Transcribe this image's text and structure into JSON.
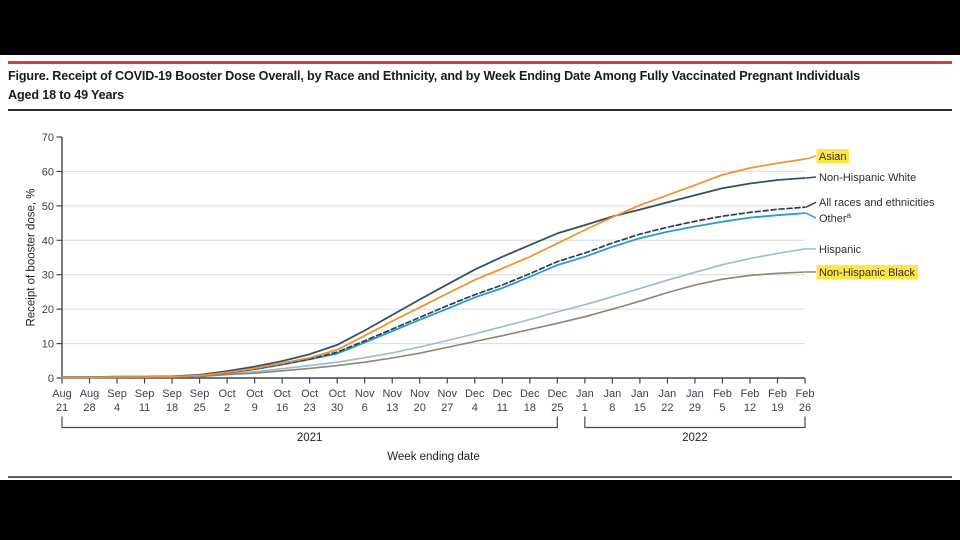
{
  "page": {
    "background": "#000000",
    "card_background": "#ffffff",
    "top_rule_color": "#DE3B40",
    "highlight_color": "#FFE546"
  },
  "figure_title": {
    "line1": "Figure. Receipt of COVID-19 Booster Dose Overall, by Race and Ethnicity, and by Week Ending Date Among Fully Vaccinated Pregnant Individuals",
    "line2": "Aged 18 to 49 Years"
  },
  "chart_data": {
    "type": "line",
    "title": "",
    "xlabel": "Week ending date",
    "ylabel": "Receipt of booster dose, %",
    "ylim": [
      0,
      70
    ],
    "yticks": [
      0,
      10,
      20,
      30,
      40,
      50,
      60,
      70
    ],
    "grid": "horizontal gridlines at 10-60",
    "legend_position": "right of line ends",
    "x_tick_months": [
      "Aug",
      "Aug",
      "Sep",
      "Sep",
      "Sep",
      "Sep",
      "Oct",
      "Oct",
      "Oct",
      "Oct",
      "Oct",
      "Nov",
      "Nov",
      "Nov",
      "Nov",
      "Dec",
      "Dec",
      "Dec",
      "Dec",
      "Jan",
      "Jan",
      "Jan",
      "Jan",
      "Jan",
      "Feb",
      "Feb",
      "Feb",
      "Feb"
    ],
    "x_tick_days": [
      "21",
      "28",
      "4",
      "11",
      "18",
      "25",
      "2",
      "9",
      "16",
      "23",
      "30",
      "6",
      "13",
      "20",
      "27",
      "4",
      "11",
      "18",
      "25",
      "1",
      "8",
      "15",
      "22",
      "29",
      "5",
      "12",
      "19",
      "26"
    ],
    "year_spans": [
      {
        "label": "2021",
        "from_index": 0,
        "to_index": 18
      },
      {
        "label": "2022",
        "from_index": 19,
        "to_index": 27
      }
    ],
    "series": [
      {
        "key": "hispanic",
        "label": "Hispanic",
        "color": "#A0BACA",
        "dash": null,
        "width": 1.6,
        "highlight": false,
        "label_dy": 0,
        "values": [
          0.2,
          0.2,
          0.2,
          0.3,
          0.3,
          0.5,
          1.2,
          1.8,
          2.7,
          3.6,
          4.6,
          5.9,
          7.3,
          9.0,
          10.9,
          12.8,
          14.9,
          17.0,
          19.2,
          21.3,
          23.6,
          26.0,
          28.4,
          30.7,
          32.9,
          34.7,
          36.2,
          37.5
        ]
      },
      {
        "key": "non-hispanic-black",
        "label": "Non-Hispanic Black",
        "color": "#8D8672",
        "dash": null,
        "width": 1.6,
        "highlight": true,
        "label_dy": 0,
        "values": [
          0.1,
          0.1,
          0.2,
          0.2,
          0.3,
          0.4,
          1.0,
          1.4,
          2.1,
          2.8,
          3.6,
          4.6,
          5.8,
          7.2,
          8.9,
          10.6,
          12.3,
          14.1,
          15.9,
          17.8,
          20.0,
          22.3,
          24.8,
          27.0,
          28.7,
          29.8,
          30.4,
          30.8
        ]
      },
      {
        "key": "other",
        "label": "Other",
        "sup": "a",
        "color": "#2A9AD6",
        "dash": null,
        "width": 1.8,
        "highlight": false,
        "label_dy": 5,
        "values": [
          0.2,
          0.2,
          0.3,
          0.3,
          0.4,
          0.7,
          1.5,
          2.5,
          3.9,
          5.4,
          7.1,
          10.3,
          13.6,
          16.9,
          20.1,
          23.4,
          26.1,
          29.4,
          32.8,
          35.2,
          38.1,
          40.6,
          42.5,
          44.0,
          45.4,
          46.6,
          47.3,
          47.9
        ]
      },
      {
        "key": "all-races-and-ethnicities",
        "label": "All races and ethnicities",
        "color": "#2B3E4E",
        "dash": "5,3",
        "width": 1.7,
        "highlight": false,
        "label_dy": -5,
        "values": [
          0.2,
          0.2,
          0.3,
          0.3,
          0.4,
          0.7,
          1.5,
          2.6,
          4.0,
          5.5,
          7.5,
          10.8,
          14.2,
          17.6,
          21.0,
          24.2,
          27.0,
          30.3,
          33.8,
          36.3,
          39.2,
          41.8,
          43.8,
          45.5,
          47.0,
          48.1,
          49.0,
          49.6
        ]
      },
      {
        "key": "non-hispanic-white",
        "label": "Non-Hispanic White",
        "color": "#374F63",
        "dash": null,
        "width": 1.8,
        "highlight": false,
        "label_dy": -1,
        "values": [
          0.3,
          0.3,
          0.4,
          0.4,
          0.5,
          0.9,
          2.0,
          3.3,
          4.9,
          6.9,
          9.6,
          13.8,
          18.3,
          22.8,
          27.2,
          31.5,
          35.2,
          38.6,
          42.0,
          44.4,
          46.9,
          48.9,
          51.0,
          53.1,
          55.1,
          56.5,
          57.5,
          58.1
        ]
      },
      {
        "key": "asian",
        "label": "Asian",
        "color": "#EF9331",
        "dash": null,
        "width": 1.8,
        "highlight": true,
        "label_dy": -3,
        "values": [
          0.2,
          0.2,
          0.3,
          0.3,
          0.4,
          0.7,
          1.6,
          2.8,
          4.3,
          5.9,
          8.2,
          12.3,
          16.5,
          20.5,
          24.5,
          28.5,
          31.8,
          35.2,
          39.1,
          43.0,
          46.7,
          50.2,
          53.1,
          56.0,
          59.0,
          61.0,
          62.4,
          63.6
        ]
      }
    ]
  }
}
